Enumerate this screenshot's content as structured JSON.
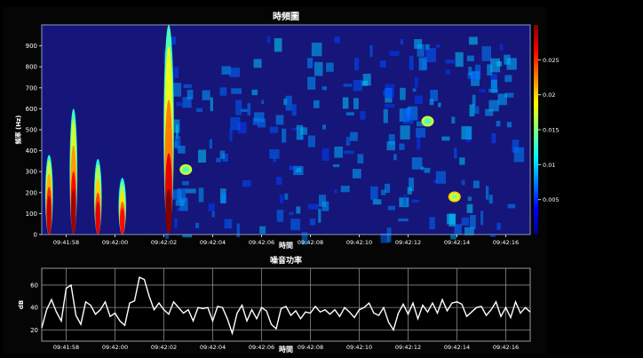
{
  "chart_data": [
    {
      "type": "heatmap",
      "title": "時頻圖",
      "xlabel": "時間",
      "ylabel": "頻率 (Hz)",
      "ylim": [
        0,
        1000
      ],
      "xlim": [
        "09:41:57",
        "09:42:17"
      ],
      "y_ticks": [
        "0",
        "100",
        "200",
        "300",
        "400",
        "500",
        "600",
        "700",
        "800",
        "900"
      ],
      "x_ticks": [
        "09:41:58",
        "09:42:00",
        "09:42:02",
        "09:42:04",
        "09:42:06",
        "09:42:08",
        "09:42:10",
        "09:42:12",
        "09:42:14",
        "09:42:16"
      ],
      "colorbar_ticks": [
        "0.005",
        "0.01",
        "0.015",
        "0.02",
        "0.025"
      ],
      "colorbar_range": [
        0,
        0.03
      ],
      "colorscale": "jet",
      "features": [
        {
          "t": "09:41:57.3",
          "f_top": 380,
          "peak_hz": 150,
          "intensity": 0.028
        },
        {
          "t": "09:41:58.3",
          "f_top": 600,
          "peak_hz": 150,
          "intensity": 0.029
        },
        {
          "t": "09:41:59.3",
          "f_top": 360,
          "peak_hz": 120,
          "intensity": 0.027
        },
        {
          "t": "09:42:00.3",
          "f_top": 270,
          "peak_hz": 100,
          "intensity": 0.026
        },
        {
          "t": "09:42:02.2",
          "f_top": 1000,
          "peak_hz": 80,
          "intensity": 0.03
        },
        {
          "t": "09:42:02.9",
          "f_top": 300,
          "peak_hz": 310,
          "intensity": 0.012
        },
        {
          "t": "09:42:13.9",
          "f_top": 200,
          "peak_hz": 180,
          "intensity": 0.016
        },
        {
          "t": "09:42:12.8",
          "f_top": 540,
          "peak_hz": 540,
          "intensity": 0.012
        }
      ]
    },
    {
      "type": "line",
      "title": "噪音功率",
      "xlabel": "時間",
      "ylabel": "dB",
      "ylim": [
        10,
        75
      ],
      "y_ticks": [
        "20",
        "40",
        "60"
      ],
      "x_ticks": [
        "09:41:58",
        "09:42:00",
        "09:42:02",
        "09:42:04",
        "09:42:06",
        "09:42:08",
        "09:42:10",
        "09:42:12",
        "09:42:14",
        "09:42:16"
      ],
      "x_start": "09:41:57",
      "x_step_seconds": 0.2,
      "series": [
        {
          "values": [
            22,
            38,
            47,
            36,
            28,
            57,
            60,
            33,
            25,
            45,
            42,
            34,
            38,
            45,
            32,
            35,
            28,
            24,
            44,
            46,
            67,
            65,
            50,
            38,
            44,
            38,
            34,
            45,
            40,
            35,
            38,
            28,
            40,
            39,
            40,
            28,
            41,
            40,
            30,
            17,
            35,
            42,
            28,
            38,
            30,
            40,
            37,
            25,
            21,
            39,
            41,
            33,
            37,
            30,
            36,
            35,
            41,
            36,
            38,
            34,
            38,
            32,
            40,
            36,
            31,
            38,
            40,
            44,
            35,
            33,
            40,
            27,
            20,
            35,
            43,
            34,
            44,
            30,
            42,
            36,
            44,
            35,
            47,
            37,
            44,
            45,
            43,
            32,
            36,
            40,
            41,
            33,
            38,
            45,
            32,
            40,
            31,
            45,
            35,
            40,
            36
          ]
        }
      ]
    }
  ]
}
